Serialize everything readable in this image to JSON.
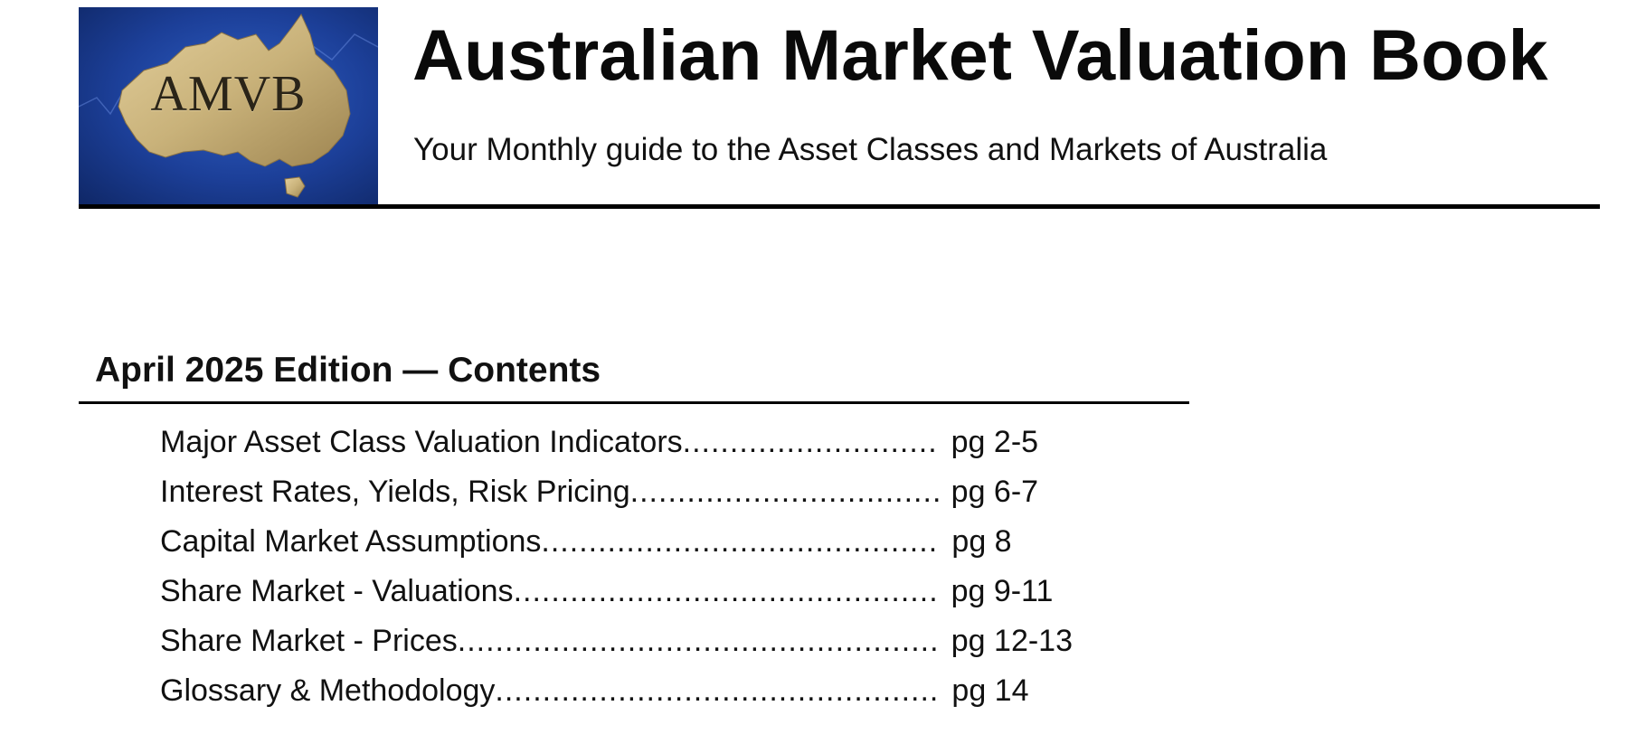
{
  "header": {
    "logo_text": "AMVB",
    "title": "Australian Market Valuation Book",
    "subtitle": "Your Monthly guide to the Asset Classes and Markets of Australia"
  },
  "contents": {
    "heading": "April 2025 Edition — Contents",
    "items": [
      {
        "label": "Major Asset Class Valuation Indicators ",
        "dots": "...........................",
        "page": "pg 2-5"
      },
      {
        "label": "Interest Rates, Yields, Risk Pricing ",
        "dots": ".................................",
        "page": "pg 6-7"
      },
      {
        "label": "Capital Market Assumptions",
        "dots": "...........................................",
        "page": "pg 8"
      },
      {
        "label": "Share Market - Valuations ",
        "dots": "...............................................",
        "page": "pg 9-11"
      },
      {
        "label": "Share Market - Prices ",
        "dots": "....................................................",
        "page": "pg 12-13"
      },
      {
        "label": "Glossary & Methodology ",
        "dots": "................................................",
        "page": "pg 14"
      }
    ]
  },
  "colors": {
    "logo_background": "#1c3f98",
    "logo_map": "#c9b27a",
    "rule": "#000000"
  }
}
